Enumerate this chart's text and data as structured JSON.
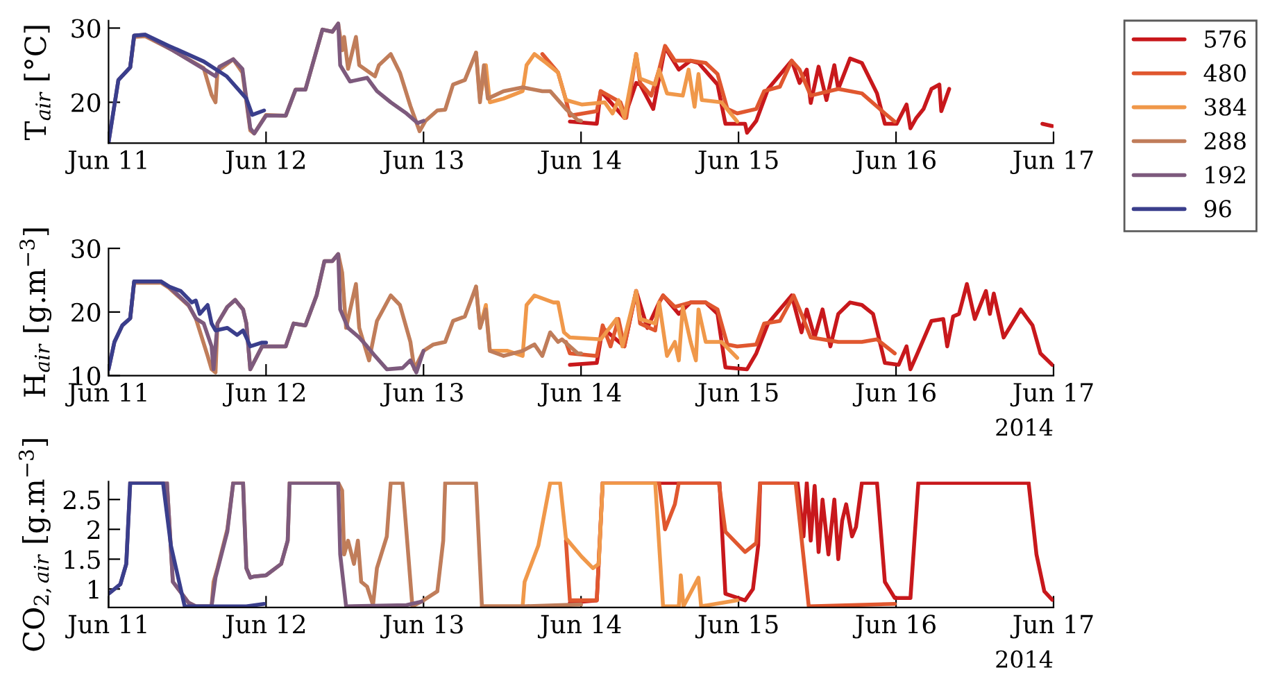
{
  "chart_data": [
    {
      "type": "line",
      "ylabel": "T$_{air}$ [°C]",
      "xlim": [
        "2014-06-11",
        "2014-06-17"
      ],
      "xticks": [
        {
          "value": "2014-06-11",
          "label": "Jun 11"
        },
        {
          "value": "2014-06-12",
          "label": "Jun 12"
        },
        {
          "value": "2014-06-13",
          "label": "Jun 13"
        },
        {
          "value": "2014-06-14",
          "label": "Jun 14"
        },
        {
          "value": "2014-06-15",
          "label": "Jun 15"
        },
        {
          "value": "2014-06-16",
          "label": "Jun 16"
        },
        {
          "value": "2014-06-17",
          "label": "Jun 17"
        }
      ],
      "ylim": [
        14.5,
        31
      ],
      "yticks": [
        20,
        30
      ],
      "legend": "right",
      "line_style": "solid",
      "marker": "none",
      "series": [
        {
          "name": "576",
          "color": "#c8181c",
          "x": [
            "2014-06-13T22:18",
            "2014-06-14T02:24",
            "2014-06-14T03:00",
            "2014-06-14T06:36",
            "2014-06-14T08:24",
            "2014-06-14T09:00",
            "2014-06-14T11:00",
            "2014-06-14T12:48",
            "2014-06-14T14:54",
            "2014-06-14T16:42",
            "2014-06-14T17:54",
            "2014-06-14T20:48",
            "2014-06-14T22:00",
            "2014-06-15T01:00",
            "2014-06-15T01:18",
            "2014-06-15T02:42",
            "2014-06-15T04:30",
            "2014-06-15T08:06",
            "2014-06-15T09:18",
            "2014-06-15T10:24",
            "2014-06-15T11:00",
            "2014-06-15T12:12",
            "2014-06-15T13:24",
            "2014-06-15T14:36",
            "2014-06-15T15:12",
            "2014-06-15T17:00",
            "2014-06-15T18:48",
            "2014-06-15T21:06",
            "2014-06-15T22:18",
            "2014-06-16T00:06",
            "2014-06-16T01:36",
            "2014-06-16T02:12",
            "2014-06-16T03:06",
            "2014-06-16T04:12",
            "2014-06-16T05:24",
            "2014-06-16T06:36",
            "2014-06-16T06:54",
            "2014-06-16T08:06",
            "2014-06-16T15:00",
            "2014-06-16T22:18",
            "2014-06-16T23:48"
          ],
          "values": [
            17.4,
            17.1,
            21.5,
            17.9,
            22.6,
            22.4,
            19.1,
            27.4,
            24.4,
            25.6,
            25.3,
            22.4,
            17.1,
            17.1,
            15.9,
            17.5,
            21.8,
            25.6,
            22.6,
            24.4,
            19.9,
            24.8,
            20.3,
            25,
            21.8,
            25.9,
            25.3,
            21.2,
            17.1,
            17.1,
            19.7,
            16.5,
            17.9,
            19.1,
            21.8,
            22.4,
            18.8,
            21.8,
            null,
            17.1,
            16.8
          ]
        },
        {
          "name": "480",
          "color": "#e0572f",
          "x": [
            "2014-06-13T18:06",
            "2014-06-13T20:30",
            "2014-06-13T21:42",
            "2014-06-13T22:18",
            "2014-06-14T02:24",
            "2014-06-14T03:00",
            "2014-06-14T06:00",
            "2014-06-14T06:54",
            "2014-06-14T08:24",
            "2014-06-14T09:00",
            "2014-06-14T10:42",
            "2014-06-14T11:54",
            "2014-06-14T12:48",
            "2014-06-14T14:18",
            "2014-06-14T16:42",
            "2014-06-14T19:00",
            "2014-06-14T20:48",
            "2014-06-14T22:18",
            "2014-06-14T23:48",
            "2014-06-15T02:42",
            "2014-06-15T03:54",
            "2014-06-15T06:18",
            "2014-06-15T08:06",
            "2014-06-15T09:18",
            "2014-06-15T11:00",
            "2014-06-15T15:12",
            "2014-06-15T18:48",
            "2014-06-15T22:18",
            "2014-06-15T23:48"
          ],
          "values": [
            26.5,
            24,
            20.3,
            18.2,
            18.8,
            21.5,
            20,
            17.9,
            26.5,
            22.6,
            20.9,
            24.4,
            27.6,
            25.6,
            25.6,
            25.3,
            23.8,
            19.1,
            18.5,
            19.1,
            21.5,
            22.1,
            25.6,
            24.4,
            20.9,
            21.8,
            21.2,
            18.5,
            17.4
          ]
        },
        {
          "name": "384",
          "color": "#f0984a",
          "x": [
            "2014-06-13T08:00",
            "2014-06-13T08:36",
            "2014-06-13T09:30",
            "2014-06-13T10:06",
            "2014-06-13T12:12",
            "2014-06-13T15:06",
            "2014-06-13T15:42",
            "2014-06-13T16:54",
            "2014-06-13T18:42",
            "2014-06-13T20:30",
            "2014-06-13T21:42",
            "2014-06-14T00:06",
            "2014-06-14T03:36",
            "2014-06-14T04:48",
            "2014-06-14T05:42",
            "2014-06-14T06:36",
            "2014-06-14T08:24",
            "2014-06-14T09:00",
            "2014-06-14T11:18",
            "2014-06-14T11:54",
            "2014-06-14T13:06",
            "2014-06-14T15:30",
            "2014-06-14T16:24",
            "2014-06-14T17:18",
            "2014-06-14T17:54",
            "2014-06-14T18:24",
            "2014-06-14T21:24",
            "2014-06-14T23:48"
          ],
          "values": [
            26.7,
            20.5,
            25,
            20,
            20.5,
            21.5,
            25,
            26.5,
            25.3,
            24,
            20.3,
            19.7,
            20,
            18.5,
            20.3,
            17.9,
            26.5,
            23.2,
            22.4,
            24.4,
            21.2,
            20.9,
            24.4,
            19.4,
            23.8,
            20.3,
            20,
            17.4
          ]
        },
        {
          "name": "288",
          "color": "#c07d5a",
          "x": [
            "2014-06-11T03:18",
            "2014-06-11T03:54",
            "2014-06-11T05:36",
            "2014-06-11T09:48",
            "2014-06-11T14:30",
            "2014-06-11T15:42",
            "2014-06-11T16:18",
            "2014-06-11T16:36",
            "2014-06-11T19:00",
            "2014-06-11T20:24",
            "2014-06-11T21:36",
            "2014-06-11T22:12",
            "2014-06-12T00:00",
            "2014-06-12T03:00",
            "2014-06-12T04:30",
            "2014-06-12T06:00",
            "2014-06-12T08:36",
            "2014-06-12T10:06",
            "2014-06-12T11:00",
            "2014-06-12T11:36",
            "2014-06-12T11:54",
            "2014-06-12T12:30",
            "2014-06-12T13:42",
            "2014-06-12T14:12",
            "2014-06-12T16:36",
            "2014-06-12T17:12",
            "2014-06-12T19:00",
            "2014-06-12T20:24",
            "2014-06-12T22:00",
            "2014-06-12T23:24",
            "2014-06-13T00:18",
            "2014-06-13T02:06",
            "2014-06-13T03:18",
            "2014-06-13T04:30",
            "2014-06-13T06:18",
            "2014-06-13T08:00",
            "2014-06-13T08:36",
            "2014-06-13T09:12",
            "2014-06-13T09:48",
            "2014-06-13T12:12",
            "2014-06-13T15:06",
            "2014-06-13T18:06",
            "2014-06-13T19:18",
            "2014-06-13T21:42",
            "2014-06-13T23:30",
            "2014-06-14T00:00"
          ],
          "values": [
            24.7,
            28.8,
            28.9,
            27,
            24.6,
            21,
            20,
            24.2,
            25.8,
            24,
            16.2,
            15.8,
            18.3,
            18.2,
            21.7,
            21.7,
            29.8,
            29.5,
            30.6,
            27,
            28.8,
            24.5,
            28.8,
            25,
            23.5,
            25,
            26.5,
            24,
            19.5,
            16.1,
            17.5,
            18.9,
            19,
            22.4,
            23,
            26.7,
            20,
            25,
            20.5,
            21.5,
            22,
            21.5,
            21.5,
            19.1,
            17.6,
            17.5
          ]
        },
        {
          "name": "192",
          "color": "#7d5a7d",
          "x": [
            "2014-06-11T00:00",
            "2014-06-11T01:30",
            "2014-06-11T03:18",
            "2014-06-11T03:54",
            "2014-06-11T05:36",
            "2014-06-11T09:48",
            "2014-06-11T14:30",
            "2014-06-11T16:18",
            "2014-06-11T16:54",
            "2014-06-11T19:00",
            "2014-06-11T20:24",
            "2014-06-11T21:36",
            "2014-06-11T22:12",
            "2014-06-12T00:00",
            "2014-06-12T03:00",
            "2014-06-12T04:30",
            "2014-06-12T06:00",
            "2014-06-12T08:36",
            "2014-06-12T10:06",
            "2014-06-12T11:00",
            "2014-06-12T11:18",
            "2014-06-12T12:48",
            "2014-06-12T15:24",
            "2014-06-12T16:54",
            "2014-06-12T19:00",
            "2014-06-12T21:24",
            "2014-06-12T23:06",
            "2014-06-13T00:00"
          ],
          "values": [
            14.6,
            23,
            24.7,
            29,
            29.1,
            27,
            24.5,
            23.5,
            24.8,
            25.8,
            24.5,
            16.5,
            15.8,
            18.2,
            18.2,
            21.7,
            21.7,
            29.8,
            29.5,
            30.6,
            25,
            22.8,
            23.3,
            21.5,
            20,
            18.5,
            17.2,
            17.5
          ]
        },
        {
          "name": "96",
          "color": "#3a3e8c",
          "x": [
            "2014-06-11T00:00",
            "2014-06-11T01:30",
            "2014-06-11T03:18",
            "2014-06-11T03:54",
            "2014-06-11T05:36",
            "2014-06-11T09:12",
            "2014-06-11T14:30",
            "2014-06-11T18:00",
            "2014-06-11T21:00",
            "2014-06-11T21:54",
            "2014-06-11T23:42"
          ],
          "values": [
            14.6,
            23,
            24.7,
            29,
            29.1,
            27.6,
            25.5,
            23.5,
            20.5,
            18.3,
            18.9
          ]
        }
      ]
    },
    {
      "type": "line",
      "ylabel": "H$_{air}$ [g.m$^{−3}$]",
      "annotations": [
        "2014"
      ],
      "xlim": [
        "2014-06-11",
        "2014-06-17"
      ],
      "xticks": [
        {
          "value": "2014-06-11",
          "label": "Jun 11"
        },
        {
          "value": "2014-06-12",
          "label": "Jun 12"
        },
        {
          "value": "2014-06-13",
          "label": "Jun 13"
        },
        {
          "value": "2014-06-14",
          "label": "Jun 14"
        },
        {
          "value": "2014-06-15",
          "label": "Jun 15"
        },
        {
          "value": "2014-06-16",
          "label": "Jun 16"
        },
        {
          "value": "2014-06-17",
          "label": "Jun 17"
        }
      ],
      "ylim": [
        10,
        30
      ],
      "yticks": [
        10,
        20,
        30
      ],
      "line_style": "solid",
      "marker": "none",
      "series": [
        {
          "color": "#c8181c",
          "x": [
            "2014-06-13T22:18",
            "2014-06-14T02:24",
            "2014-06-14T03:18",
            "2014-06-14T06:36",
            "2014-06-14T08:24",
            "2014-06-14T10:06",
            "2014-06-14T11:54",
            "2014-06-14T12:30",
            "2014-06-14T14:54",
            "2014-06-14T16:42",
            "2014-06-14T19:00",
            "2014-06-14T20:48",
            "2014-06-14T22:00",
            "2014-06-15T01:18",
            "2014-06-15T02:42",
            "2014-06-15T04:30",
            "2014-06-15T08:06",
            "2014-06-15T09:36",
            "2014-06-15T10:24",
            "2014-06-15T11:36",
            "2014-06-15T12:48",
            "2014-06-15T14:00",
            "2014-06-15T15:12",
            "2014-06-15T17:00",
            "2014-06-15T18:48",
            "2014-06-15T20:30",
            "2014-06-15T22:18",
            "2014-06-16T00:24",
            "2014-06-16T01:36",
            "2014-06-16T02:12",
            "2014-06-16T03:06",
            "2014-06-16T05:24",
            "2014-06-16T07:12",
            "2014-06-16T07:48",
            "2014-06-16T08:42",
            "2014-06-16T09:36",
            "2014-06-16T10:48",
            "2014-06-16T12:00",
            "2014-06-16T13:42",
            "2014-06-16T14:18",
            "2014-06-16T14:54",
            "2014-06-16T16:24",
            "2014-06-16T19:00",
            "2014-06-16T20:48",
            "2014-06-16T22:00",
            "2014-06-16T23:48"
          ],
          "values": [
            11.7,
            12,
            17.5,
            14.6,
            23.3,
            17.5,
            21.5,
            22.6,
            19.7,
            21.5,
            21.5,
            19.7,
            11.3,
            11,
            13.5,
            18.2,
            22.6,
            16.8,
            20.4,
            16,
            20.4,
            14.6,
            19.7,
            21.5,
            21.1,
            19.7,
            12,
            11.7,
            14.6,
            11,
            13.1,
            18.6,
            18.9,
            14.6,
            19.3,
            19.7,
            24.4,
            18.9,
            23.3,
            19.7,
            22.9,
            16,
            20.4,
            17.9,
            13.5,
            11.7
          ]
        },
        {
          "color": "#e0572f",
          "x": [
            "2014-06-13T21:42",
            "2014-06-13T22:18",
            "2014-06-14T02:24",
            "2014-06-14T03:18",
            "2014-06-14T04:30",
            "2014-06-14T05:42",
            "2014-06-14T06:36",
            "2014-06-14T08:24",
            "2014-06-14T09:00",
            "2014-06-14T11:18",
            "2014-06-14T11:54",
            "2014-06-14T12:30",
            "2014-06-14T14:18",
            "2014-06-14T16:42",
            "2014-06-14T19:00",
            "2014-06-14T20:48",
            "2014-06-14T22:18",
            "2014-06-14T23:48",
            "2014-06-15T02:42",
            "2014-06-15T03:54",
            "2014-06-15T06:18",
            "2014-06-15T08:24",
            "2014-06-15T09:54",
            "2014-06-15T11:00",
            "2014-06-15T15:12",
            "2014-06-15T18:48",
            "2014-06-15T21:06",
            "2014-06-15T23:48"
          ],
          "values": [
            15.3,
            13.5,
            13.1,
            17.9,
            14.6,
            18.9,
            14.6,
            23.3,
            18.2,
            17.1,
            21.5,
            22.6,
            20.8,
            21.5,
            21.5,
            20.4,
            14.9,
            14.6,
            14.9,
            18.2,
            18.6,
            22.6,
            18.9,
            16,
            15.3,
            15.3,
            15.7,
            13.5
          ]
        },
        {
          "color": "#f0984a",
          "x": [
            "2014-06-13T08:00",
            "2014-06-13T08:36",
            "2014-06-13T09:30",
            "2014-06-13T10:06",
            "2014-06-13T12:48",
            "2014-06-13T15:06",
            "2014-06-13T15:42",
            "2014-06-13T16:54",
            "2014-06-13T19:48",
            "2014-06-13T20:30",
            "2014-06-13T21:24",
            "2014-06-13T22:18",
            "2014-06-14T03:00",
            "2014-06-14T05:24",
            "2014-06-14T06:18",
            "2014-06-14T08:24",
            "2014-06-14T09:00",
            "2014-06-14T11:18",
            "2014-06-14T11:54",
            "2014-06-14T13:06",
            "2014-06-14T14:18",
            "2014-06-14T14:54",
            "2014-06-14T15:30",
            "2014-06-14T16:42",
            "2014-06-14T17:30",
            "2014-06-14T17:54",
            "2014-06-14T19:00",
            "2014-06-14T21:24",
            "2014-06-14T23:48"
          ],
          "values": [
            24,
            17.5,
            21.1,
            13.9,
            13.9,
            13.1,
            21.1,
            22.6,
            21.5,
            21.5,
            16.8,
            16,
            15.7,
            18.9,
            14.6,
            23.3,
            18.9,
            18.2,
            21.5,
            13.1,
            15.3,
            12.4,
            20.8,
            15.3,
            12.4,
            20.4,
            15.3,
            15.3,
            12.8
          ]
        },
        {
          "color": "#c07d5a",
          "x": [
            "2014-06-11T03:18",
            "2014-06-11T03:54",
            "2014-06-11T08:00",
            "2014-06-11T09:12",
            "2014-06-11T12:12",
            "2014-06-11T13:18",
            "2014-06-11T15:06",
            "2014-06-11T15:42",
            "2014-06-11T16:18",
            "2014-06-11T16:36",
            "2014-06-11T18:06",
            "2014-06-11T19:18",
            "2014-06-11T20:30",
            "2014-06-11T21:00",
            "2014-06-11T21:36",
            "2014-06-11T23:24",
            "2014-06-12T03:00",
            "2014-06-12T04:12",
            "2014-06-12T06:00",
            "2014-06-12T07:42",
            "2014-06-12T08:54",
            "2014-06-12T10:06",
            "2014-06-12T11:00",
            "2014-06-12T11:36",
            "2014-06-12T12:12",
            "2014-06-12T13:42",
            "2014-06-12T14:12",
            "2014-06-12T15:42",
            "2014-06-12T16:54",
            "2014-06-12T19:00",
            "2014-06-12T20:24",
            "2014-06-12T22:00",
            "2014-06-12T22:36",
            "2014-06-13T00:00",
            "2014-06-13T01:30",
            "2014-06-13T03:18",
            "2014-06-13T04:30",
            "2014-06-13T06:18",
            "2014-06-13T08:00",
            "2014-06-13T08:36",
            "2014-06-13T09:30",
            "2014-06-13T10:06",
            "2014-06-13T12:12",
            "2014-06-13T15:06",
            "2014-06-13T16:54",
            "2014-06-13T18:06",
            "2014-06-13T19:18",
            "2014-06-13T20:30",
            "2014-06-13T21:06",
            "2014-06-13T23:30",
            "2014-06-14T00:00"
          ],
          "values": [
            19,
            24.6,
            24.6,
            23.8,
            21,
            19,
            13.1,
            11,
            10.5,
            18.2,
            20.8,
            21.9,
            20.4,
            18.2,
            11,
            14.6,
            14.6,
            18.2,
            17.9,
            22.6,
            28,
            28,
            29.1,
            26.2,
            17.5,
            24.4,
            17.5,
            12.4,
            18.6,
            22.6,
            21.1,
            15.3,
            11,
            13.9,
            14.9,
            15.3,
            18.6,
            19.3,
            24,
            17.5,
            20.4,
            13.9,
            13.1,
            13.9,
            14.9,
            13.1,
            16.8,
            15.3,
            15.7,
            13.5,
            13.5
          ]
        },
        {
          "color": "#7d5a7d",
          "x": [
            "2014-06-11T00:00",
            "2014-06-11T00:54",
            "2014-06-11T02:06",
            "2014-06-11T03:18",
            "2014-06-11T03:54",
            "2014-06-11T08:00",
            "2014-06-11T09:12",
            "2014-06-11T12:12",
            "2014-06-11T13:18",
            "2014-06-11T14:30",
            "2014-06-11T15:42",
            "2014-06-11T16:00",
            "2014-06-11T16:36",
            "2014-06-11T18:06",
            "2014-06-11T19:18",
            "2014-06-11T20:30",
            "2014-06-11T21:00",
            "2014-06-11T21:36",
            "2014-06-11T23:24",
            "2014-06-12T03:00",
            "2014-06-12T04:12",
            "2014-06-12T06:00",
            "2014-06-12T07:42",
            "2014-06-12T08:54",
            "2014-06-12T10:06",
            "2014-06-12T11:00",
            "2014-06-12T11:18",
            "2014-06-12T12:30",
            "2014-06-12T14:12",
            "2014-06-12T15:24",
            "2014-06-12T16:36",
            "2014-06-12T18:24",
            "2014-06-12T20:48",
            "2014-06-12T22:00",
            "2014-06-12T22:54",
            "2014-06-13T00:00"
          ],
          "values": [
            11,
            15.3,
            17.9,
            19,
            24.8,
            24.8,
            24,
            21.1,
            19,
            18.2,
            14.6,
            11,
            18.2,
            20.8,
            21.9,
            20.4,
            18.2,
            11,
            14.6,
            14.6,
            18.2,
            17.9,
            22.6,
            28,
            28,
            29.1,
            20.4,
            17.5,
            16,
            14.6,
            13.1,
            11,
            11.2,
            12.4,
            10.5,
            13.9
          ]
        },
        {
          "color": "#3a3e8c",
          "x": [
            "2014-06-11T00:00",
            "2014-06-11T00:54",
            "2014-06-11T02:06",
            "2014-06-11T03:18",
            "2014-06-11T03:54",
            "2014-06-11T08:00",
            "2014-06-11T09:12",
            "2014-06-11T11:00",
            "2014-06-11T12:42",
            "2014-06-11T13:18",
            "2014-06-11T13:54",
            "2014-06-11T15:06",
            "2014-06-11T15:42",
            "2014-06-11T16:18",
            "2014-06-11T18:06",
            "2014-06-11T19:36",
            "2014-06-11T20:30",
            "2014-06-11T21:00",
            "2014-06-11T21:36",
            "2014-06-11T23:24",
            "2014-06-12T00:00"
          ],
          "values": [
            11,
            15.3,
            17.9,
            19,
            24.8,
            24.8,
            24,
            23.3,
            21.5,
            21.8,
            19.7,
            21.1,
            18.2,
            17.1,
            17.5,
            16.4,
            17.1,
            16,
            14.6,
            15.2,
            15.2
          ]
        }
      ]
    },
    {
      "type": "line",
      "ylabel": "CO$_{2,air}$ [g.m$^{−3}$]",
      "annotations": [
        "2014"
      ],
      "xlim": [
        "2014-06-11",
        "2014-06-17"
      ],
      "xticks": [
        {
          "value": "2014-06-11",
          "label": "Jun 11"
        },
        {
          "value": "2014-06-12",
          "label": "Jun 12"
        },
        {
          "value": "2014-06-13",
          "label": "Jun 13"
        },
        {
          "value": "2014-06-14",
          "label": "Jun 14"
        },
        {
          "value": "2014-06-15",
          "label": "Jun 15"
        },
        {
          "value": "2014-06-16",
          "label": "Jun 16"
        },
        {
          "value": "2014-06-17",
          "label": "Jun 17"
        }
      ],
      "ylim": [
        0.69,
        2.8
      ],
      "yticks": [
        1,
        1.5,
        2,
        2.5
      ],
      "line_style": "solid",
      "marker": "none",
      "series": [
        {
          "color": "#c8181c",
          "x": [
            "2014-06-13T22:18",
            "2014-06-14T02:24",
            "2014-06-14T03:18",
            "2014-06-14T11:54",
            "2014-06-14T21:06",
            "2014-06-14T22:00",
            "2014-06-15T01:00",
            "2014-06-15T02:12",
            "2014-06-15T03:00",
            "2014-06-15T03:18",
            "2014-06-15T09:00",
            "2014-06-15T09:54",
            "2014-06-15T10:24",
            "2014-06-15T11:00",
            "2014-06-15T11:36",
            "2014-06-15T12:12",
            "2014-06-15T12:48",
            "2014-06-15T13:42",
            "2014-06-15T14:36",
            "2014-06-15T15:12",
            "2014-06-15T15:48",
            "2014-06-15T16:24",
            "2014-06-15T17:18",
            "2014-06-15T17:54",
            "2014-06-15T18:48",
            "2014-06-15T21:06",
            "2014-06-15T22:18",
            "2014-06-15T23:48",
            "2014-06-16T02:12",
            "2014-06-16T03:24",
            "2014-06-16T20:12",
            "2014-06-16T21:24",
            "2014-06-16T22:36",
            "2014-06-16T23:48"
          ],
          "values": [
            0.77,
            0.81,
            2.78,
            2.78,
            2.78,
            0.92,
            0.81,
            1,
            1.73,
            2.78,
            2.78,
            1.88,
            2.78,
            1.81,
            2.73,
            1.62,
            2.5,
            1.58,
            2.5,
            1.5,
            2.15,
            2.42,
            1.88,
            2.04,
            2.78,
            2.78,
            1.12,
            0.85,
            0.85,
            2.78,
            2.78,
            1.58,
            0.96,
            0.82
          ]
        },
        {
          "color": "#e0572f",
          "x": [
            "2014-06-13T21:42",
            "2014-06-13T22:18",
            "2014-06-14T02:24",
            "2014-06-14T03:18",
            "2014-06-14T11:54",
            "2014-06-14T12:48",
            "2014-06-14T14:18",
            "2014-06-14T14:54",
            "2014-06-14T21:00",
            "2014-06-14T22:00",
            "2014-06-15T01:00",
            "2014-06-15T02:42",
            "2014-06-15T03:18",
            "2014-06-15T08:42",
            "2014-06-15T10:42",
            "2014-06-15T23:48"
          ],
          "values": [
            1.81,
            0.81,
            0.81,
            2.78,
            2.78,
            2,
            2.42,
            2.78,
            2.78,
            1.96,
            1.62,
            1.77,
            2.78,
            2.78,
            0.71,
            0.75
          ]
        },
        {
          "color": "#f0984a",
          "x": [
            "2014-06-13T08:54",
            "2014-06-13T15:06",
            "2014-06-13T15:24",
            "2014-06-13T17:30",
            "2014-06-13T19:18",
            "2014-06-13T20:48",
            "2014-06-13T21:42",
            "2014-06-14T00:06",
            "2014-06-14T01:48",
            "2014-06-14T02:42",
            "2014-06-14T03:18",
            "2014-06-14T11:18",
            "2014-06-14T12:30",
            "2014-06-14T14:54",
            "2014-06-14T15:12",
            "2014-06-14T15:36",
            "2014-06-14T17:54",
            "2014-06-14T18:18",
            "2014-06-14T23:48"
          ],
          "values": [
            0.71,
            0.71,
            1.12,
            1.73,
            2.78,
            2.78,
            1.85,
            1.54,
            1.35,
            1.42,
            2.78,
            2.78,
            0.71,
            0.71,
            1.23,
            0.71,
            1.19,
            0.71,
            0.81
          ]
        },
        {
          "color": "#c07d5a",
          "x": [
            "2014-06-11T03:18",
            "2014-06-11T08:54",
            "2014-06-11T09:48",
            "2014-06-11T12:12",
            "2014-06-11T13:18",
            "2014-06-11T15:42",
            "2014-06-11T16:00",
            "2014-06-11T16:36",
            "2014-06-11T18:06",
            "2014-06-11T19:00",
            "2014-06-11T20:30",
            "2014-06-11T21:00",
            "2014-06-11T21:36",
            "2014-06-11T22:12",
            "2014-06-12T00:00",
            "2014-06-12T02:18",
            "2014-06-12T03:18",
            "2014-06-12T03:36",
            "2014-06-12T11:00",
            "2014-06-12T11:36",
            "2014-06-12T11:54",
            "2014-06-12T12:30",
            "2014-06-12T13:24",
            "2014-06-12T14:00",
            "2014-06-12T14:30",
            "2014-06-12T15:24",
            "2014-06-12T16:18",
            "2014-06-12T16:54",
            "2014-06-12T18:24",
            "2014-06-12T19:00",
            "2014-06-12T20:48",
            "2014-06-12T22:18",
            "2014-06-12T23:42",
            "2014-06-13T02:06",
            "2014-06-13T03:00",
            "2014-06-13T03:18",
            "2014-06-13T08:00",
            "2014-06-13T08:54",
            "2014-06-13T15:06",
            "2014-06-14T00:00"
          ],
          "values": [
            2.78,
            2.78,
            1.12,
            0.77,
            0.71,
            0.71,
            1.12,
            1.35,
            2,
            2.78,
            2.78,
            1.35,
            1.19,
            1.21,
            1.23,
            1.42,
            1.81,
            2.78,
            2.78,
            2.65,
            1.58,
            1.81,
            1.42,
            1.81,
            1.12,
            1.04,
            0.73,
            1.35,
            1.88,
            2.78,
            2.78,
            0.71,
            0.79,
            0.96,
            1.81,
            2.78,
            2.78,
            0.71,
            0.71,
            0.74
          ]
        },
        {
          "color": "#7d5a7d",
          "x": [
            "2014-06-11T00:00",
            "2014-06-11T01:48",
            "2014-06-11T02:42",
            "2014-06-11T03:18",
            "2014-06-11T08:54",
            "2014-06-11T09:48",
            "2014-06-11T12:12",
            "2014-06-11T13:18",
            "2014-06-11T15:42",
            "2014-06-11T16:18",
            "2014-06-11T18:06",
            "2014-06-11T19:00",
            "2014-06-11T20:30",
            "2014-06-11T21:00",
            "2014-06-11T21:36",
            "2014-06-11T22:12",
            "2014-06-12T00:00",
            "2014-06-12T02:18",
            "2014-06-12T03:18",
            "2014-06-12T03:36",
            "2014-06-12T11:00",
            "2014-06-12T11:18",
            "2014-06-12T12:12",
            "2014-06-12T21:24",
            "2014-06-12T23:42"
          ],
          "values": [
            0.92,
            1.08,
            1.42,
            2.78,
            2.78,
            1.12,
            0.77,
            0.71,
            0.71,
            1.19,
            1.96,
            2.78,
            2.78,
            1.35,
            1.19,
            1.21,
            1.23,
            1.42,
            1.81,
            2.78,
            2.78,
            1.58,
            0.71,
            0.73,
            0.79
          ]
        },
        {
          "color": "#3a3e8c",
          "x": [
            "2014-06-11T00:00",
            "2014-06-11T01:48",
            "2014-06-11T02:42",
            "2014-06-11T03:18",
            "2014-06-11T08:18",
            "2014-06-11T09:30",
            "2014-06-11T11:36",
            "2014-06-11T21:00",
            "2014-06-11T23:42"
          ],
          "values": [
            0.92,
            1.08,
            1.42,
            2.78,
            2.78,
            1.73,
            0.71,
            0.71,
            0.75
          ]
        }
      ]
    }
  ]
}
